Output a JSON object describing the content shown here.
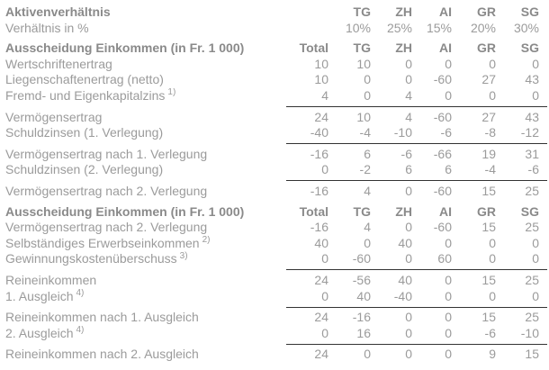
{
  "colors": {
    "text": "#9b9b9b",
    "bold_text": "#8a8a8a",
    "rule": "#333333",
    "background": "#ffffff"
  },
  "table": {
    "title_row_label": "Aktivenverhältnis",
    "canton_columns": [
      "TG",
      "ZH",
      "AI",
      "GR",
      "SG"
    ],
    "ratio_row": {
      "label": "Verhältnis in %",
      "values": [
        "10%",
        "25%",
        "15%",
        "20%",
        "30%"
      ]
    },
    "section_header_label": "Ausscheidung Einkommen (in Fr. 1 000)",
    "columns": [
      "Total",
      "TG",
      "ZH",
      "AI",
      "GR",
      "SG"
    ],
    "rows": [
      {
        "label": "Aktivenverhältnis",
        "bold": true,
        "cells": [
          "",
          "TG",
          "ZH",
          "AI",
          "GR",
          "SG"
        ]
      },
      {
        "label": "Verhältnis in %",
        "cells": [
          "",
          "10%",
          "25%",
          "15%",
          "20%",
          "30%"
        ]
      },
      {
        "label": "Ausscheidung Einkommen (in Fr. 1 000)",
        "bold": true,
        "gap": true,
        "cells": [
          "Total",
          "TG",
          "ZH",
          "AI",
          "GR",
          "SG"
        ]
      },
      {
        "label": "Wertschriftenertrag",
        "cells": [
          "10",
          "10",
          "0",
          "0",
          "0",
          "0"
        ]
      },
      {
        "label": "Liegenschaftenertrag (netto)",
        "cells": [
          "10",
          "0",
          "0",
          "-60",
          "27",
          "43"
        ]
      },
      {
        "label": "Fremd- und Eigenkapitalzins",
        "sup": "1)",
        "cells": [
          "4",
          "0",
          "4",
          "0",
          "0",
          "0"
        ]
      },
      {
        "label": "Vermögensertrag",
        "rule_above": true,
        "cells": [
          "24",
          "10",
          "4",
          "-60",
          "27",
          "43"
        ]
      },
      {
        "label": "Schuldzinsen (1. Verlegung)",
        "cells": [
          "-40",
          "-4",
          "-10",
          "-6",
          "-8",
          "-12"
        ]
      },
      {
        "label": "Vermögensertrag nach 1. Verlegung",
        "rule_above": true,
        "cells": [
          "-16",
          "6",
          "-6",
          "-66",
          "19",
          "31"
        ]
      },
      {
        "label": "Schuldzinsen (2. Verlegung)",
        "cells": [
          "0",
          "-2",
          "6",
          "6",
          "-4",
          "-6"
        ]
      },
      {
        "label": "Vermögensertrag nach 2. Verlegung",
        "rule_above": true,
        "cells": [
          "-16",
          "4",
          "0",
          "-60",
          "15",
          "25"
        ]
      },
      {
        "label": "Ausscheidung Einkommen (in Fr. 1 000)",
        "bold": true,
        "gap": true,
        "cells": [
          "Total",
          "TG",
          "ZH",
          "AI",
          "GR",
          "SG"
        ]
      },
      {
        "label": "Vermögensertrag nach 2. Verlegung",
        "cells": [
          "-16",
          "4",
          "0",
          "-60",
          "15",
          "25"
        ]
      },
      {
        "label": "Selbständiges Erwerbseinkommen",
        "sup": "2)",
        "cells": [
          "40",
          "0",
          "40",
          "0",
          "0",
          "0"
        ]
      },
      {
        "label": "Gewinnungskostenüberschuss",
        "sup": "3)",
        "cells": [
          "0",
          "-60",
          "0",
          "60",
          "0",
          "0"
        ]
      },
      {
        "label": "Reineinkommen",
        "rule_above": true,
        "cells": [
          "24",
          "-56",
          "40",
          "0",
          "15",
          "25"
        ]
      },
      {
        "label": "1. Ausgleich",
        "sup": "4)",
        "cells": [
          "0",
          "40",
          "-40",
          "0",
          "0",
          "0"
        ]
      },
      {
        "label": "Reineinkommen nach 1. Ausgleich",
        "rule_above": true,
        "cells": [
          "24",
          "-16",
          "0",
          "0",
          "15",
          "25"
        ]
      },
      {
        "label": "2. Ausgleich",
        "sup": "4)",
        "cells": [
          "0",
          "16",
          "0",
          "0",
          "-6",
          "-10"
        ]
      },
      {
        "label": "Reineinkommen nach 2. Ausgleich",
        "rule_above": true,
        "cells": [
          "24",
          "0",
          "0",
          "0",
          "9",
          "15"
        ]
      }
    ]
  }
}
